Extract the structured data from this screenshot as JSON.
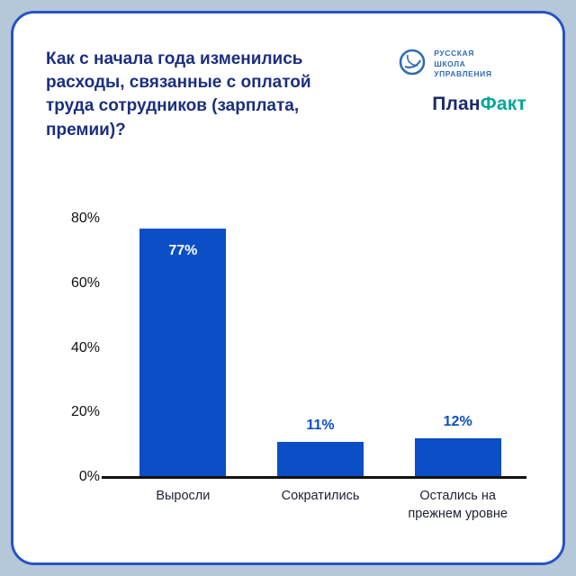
{
  "header": {
    "title": "Как с начала года изменились расходы, связанные с оплатой труда сотрудников (зарплата, премии)?",
    "logos": {
      "rsu": {
        "lines": [
          "РУССКАЯ",
          "ШКОЛА",
          "УПРАВЛЕНИЯ"
        ],
        "color": "#2f6db8"
      },
      "planfact": {
        "part1": "План",
        "part2": "Факт",
        "color1": "#1b2a6b",
        "color2": "#00a79b"
      }
    }
  },
  "chart_data": {
    "type": "bar",
    "title": "Как с начала года изменились расходы, связанные с оплатой труда сотрудников (зарплата, премии)?",
    "categories": [
      "Выросли",
      "Сократились",
      "Остались на прежнем уровне"
    ],
    "values": [
      77,
      11,
      12
    ],
    "value_labels": [
      "77%",
      "11%",
      "12%"
    ],
    "xlabel": "",
    "ylabel": "",
    "ylim": [
      0,
      80
    ],
    "yticks": [
      "0%",
      "20%",
      "40%",
      "60%",
      "80%"
    ],
    "grid": false,
    "legend": false,
    "bar_color": "#0b4ec6",
    "value_label_color_inside": "#ffffff",
    "value_label_color_outside": "#0b4ec6"
  },
  "colors": {
    "page_background": "#b5c8da",
    "card_border": "#2853c3",
    "card_background": "#ffffff",
    "title_text": "#1b2f80",
    "axis_text": "#111111"
  }
}
